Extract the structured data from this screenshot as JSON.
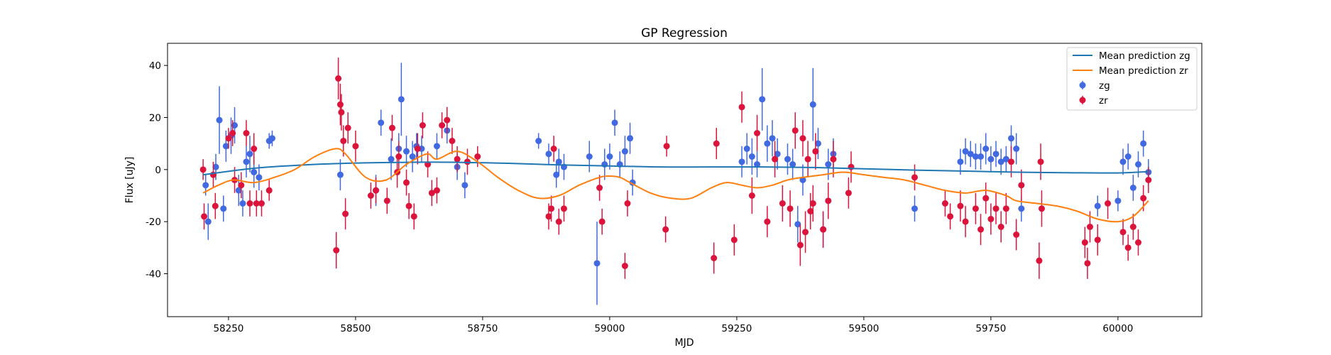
{
  "chart_data": {
    "type": "scatter",
    "title": "GP Regression",
    "xlabel": "MJD",
    "ylabel": "Flux [uJy]",
    "xlim": [
      58130,
      60165
    ],
    "ylim": [
      -56.5,
      48.5
    ],
    "x_ticks": [
      58250,
      58500,
      58750,
      59000,
      59250,
      59500,
      59750,
      60000
    ],
    "y_ticks": [
      -40,
      -20,
      0,
      20,
      40
    ],
    "grid": false,
    "legend": {
      "placement": "top-right",
      "entries": [
        "Mean prediction zg",
        "Mean prediction zr",
        "zg",
        "zr"
      ]
    },
    "series": [
      {
        "name": "Mean prediction zg",
        "kind": "line",
        "color": "#1f77b4",
        "x": [
          58200,
          58300,
          58400,
          58500,
          58600,
          58700,
          58800,
          58900,
          59000,
          59100,
          59200,
          59300,
          59400,
          59500,
          59600,
          59700,
          59800,
          59900,
          60000,
          60060
        ],
        "y": [
          -2,
          0.5,
          1.8,
          2.5,
          2.8,
          2.8,
          2.4,
          1.8,
          1.4,
          1.0,
          1.0,
          1.0,
          0.8,
          0.3,
          -0.2,
          -0.6,
          -1.0,
          -1.2,
          -1.3,
          -0.8
        ]
      },
      {
        "name": "Mean prediction zr",
        "kind": "line",
        "color": "#ff7f0e",
        "x": [
          58200,
          58230,
          58260,
          58300,
          58340,
          58380,
          58420,
          58460,
          58480,
          58520,
          58560,
          58600,
          58640,
          58660,
          58700,
          58740,
          58780,
          58820,
          58860,
          58900,
          58940,
          58980,
          59000,
          59020,
          59040,
          59080,
          59120,
          59160,
          59200,
          59230,
          59260,
          59290,
          59320,
          59350,
          59380,
          59420,
          59460,
          59500,
          59540,
          59580,
          59620,
          59660,
          59700,
          59740,
          59780,
          59800,
          59840,
          59880,
          59920,
          59960,
          60000,
          60030,
          60060
        ],
        "y": [
          -9,
          -6,
          -4,
          -5,
          -3,
          0,
          5,
          8,
          6,
          -3,
          -4,
          2,
          6,
          4,
          7,
          3,
          -3,
          -8,
          -11,
          -10,
          -6,
          -3,
          -2.5,
          -3,
          -5,
          -9,
          -11,
          -11,
          -7,
          -5,
          -6,
          -7,
          -6,
          -4,
          -3,
          -2,
          -1,
          -2,
          -3,
          -4,
          -6,
          -8,
          -9,
          -8,
          -10,
          -12,
          -13,
          -14,
          -16,
          -19,
          -20,
          -18,
          -12
        ]
      },
      {
        "name": "zg",
        "kind": "errorbar",
        "color": "#4169e1",
        "x": [
          58205,
          58210,
          58225,
          58232,
          58240,
          58245,
          58255,
          58262,
          58270,
          58278,
          58285,
          58292,
          58300,
          58310,
          58330,
          58336,
          58470,
          58540,
          58550,
          58570,
          58585,
          58590,
          58600,
          58612,
          58620,
          58630,
          58660,
          58680,
          58700,
          58715,
          58860,
          58880,
          58895,
          58900,
          58910,
          58960,
          58975,
          58990,
          59000,
          59010,
          59020,
          59030,
          59040,
          59045,
          59260,
          59270,
          59280,
          59290,
          59300,
          59310,
          59320,
          59330,
          59350,
          59360,
          59370,
          59380,
          59400,
          59410,
          59420,
          59430,
          59440,
          59600,
          59690,
          59700,
          59710,
          59720,
          59730,
          59740,
          59750,
          59760,
          59770,
          59780,
          59790,
          59800,
          59810,
          59960,
          60000,
          60010,
          60020,
          60030,
          60040,
          60050,
          60060
        ],
        "y": [
          -6,
          -20,
          1,
          19,
          -15,
          9,
          13,
          17,
          -8,
          -13,
          3,
          6,
          -1,
          -3,
          11,
          12,
          -2,
          -8,
          18,
          4,
          8,
          27,
          7,
          5,
          9,
          8,
          9,
          15,
          1,
          -6,
          11,
          6,
          -2,
          3,
          1,
          5,
          -36,
          2,
          5,
          18,
          2,
          7,
          12,
          -5,
          3,
          8,
          5,
          2,
          27,
          10,
          12,
          6,
          4,
          2,
          -21,
          -4,
          25,
          10,
          -23,
          2,
          6,
          -15,
          3,
          7,
          6,
          5,
          5,
          8,
          4,
          6,
          3,
          4,
          12,
          8,
          -15,
          -14,
          -12,
          3,
          5,
          -7,
          2,
          10,
          -1
        ],
        "yerr": [
          4,
          7,
          5,
          13,
          5,
          6,
          7,
          7,
          6,
          5,
          6,
          7,
          6,
          5,
          3,
          3,
          6,
          6,
          5,
          8,
          6,
          14,
          6,
          6,
          5,
          5,
          5,
          5,
          5,
          5,
          3,
          4,
          5,
          5,
          5,
          6,
          16,
          6,
          5,
          5,
          5,
          6,
          6,
          5,
          6,
          6,
          7,
          5,
          12,
          7,
          7,
          6,
          6,
          6,
          7,
          6,
          14,
          6,
          7,
          6,
          6,
          5,
          5,
          5,
          5,
          5,
          5,
          6,
          5,
          5,
          5,
          5,
          5,
          6,
          5,
          4,
          4,
          5,
          5,
          5,
          5,
          5,
          5
        ]
      },
      {
        "name": "zr",
        "kind": "errorbar",
        "color": "#dc143c",
        "x": [
          58200,
          58202,
          58220,
          58224,
          58250,
          58258,
          58262,
          58275,
          58285,
          58292,
          58300,
          58305,
          58315,
          58330,
          58462,
          58466,
          58470,
          58472,
          58476,
          58480,
          58485,
          58500,
          58530,
          58540,
          58562,
          58572,
          58582,
          58585,
          58600,
          58605,
          58615,
          58622,
          58632,
          58642,
          58650,
          58660,
          58670,
          58680,
          58690,
          58700,
          58720,
          58740,
          58880,
          58885,
          58890,
          58900,
          58910,
          58980,
          58985,
          59030,
          59035,
          59110,
          59112,
          59205,
          59210,
          59245,
          59260,
          59280,
          59290,
          59310,
          59325,
          59340,
          59355,
          59365,
          59375,
          59380,
          59385,
          59390,
          59395,
          59400,
          59405,
          59420,
          59430,
          59440,
          59470,
          59475,
          59600,
          59660,
          59670,
          59690,
          59700,
          59720,
          59730,
          59740,
          59750,
          59760,
          59770,
          59780,
          59790,
          59800,
          59810,
          59845,
          59848,
          59850,
          59935,
          59940,
          59945,
          59960,
          59980,
          60010,
          60020,
          60030,
          60040,
          60050,
          60060
        ],
        "y": [
          0,
          -18,
          -2,
          -14,
          12,
          14,
          -4,
          -6,
          14,
          -13,
          8,
          -13,
          -13,
          -8,
          -31,
          35,
          25,
          22,
          11,
          -17,
          16,
          9,
          -10,
          -8,
          -12,
          16,
          -1,
          5,
          -5,
          -14,
          -18,
          8,
          17,
          2,
          -9,
          -8,
          17,
          19,
          11,
          4,
          3,
          5,
          -18,
          -15,
          8,
          -20,
          -15,
          -7,
          -20,
          -37,
          -13,
          -23,
          9,
          -34,
          10,
          -27,
          24,
          -10,
          14,
          -20,
          4,
          -13,
          -15,
          15,
          -29,
          12,
          -24,
          4,
          -16,
          -13,
          7,
          -23,
          -12,
          4,
          -9,
          1,
          -3,
          -13,
          -18,
          -14,
          -20,
          -15,
          -23,
          -11,
          -19,
          -15,
          -22,
          -15,
          3,
          -25,
          -6,
          -35,
          3,
          -15,
          -28,
          -36,
          -22,
          -27,
          -13,
          -24,
          -30,
          -22,
          -28,
          -11,
          -4
        ],
        "yerr": [
          4,
          5,
          5,
          5,
          4,
          5,
          5,
          5,
          5,
          5,
          6,
          5,
          5,
          4,
          7,
          8,
          8,
          7,
          6,
          6,
          6,
          6,
          5,
          5,
          5,
          5,
          6,
          6,
          5,
          5,
          5,
          6,
          5,
          5,
          5,
          5,
          5,
          5,
          5,
          5,
          5,
          4,
          5,
          5,
          5,
          5,
          5,
          5,
          5,
          5,
          5,
          5,
          4,
          6,
          6,
          6,
          6,
          7,
          7,
          6,
          7,
          7,
          7,
          7,
          8,
          7,
          8,
          7,
          7,
          7,
          7,
          7,
          7,
          7,
          6,
          6,
          5,
          5,
          5,
          6,
          6,
          6,
          6,
          6,
          6,
          6,
          6,
          6,
          6,
          6,
          6,
          7,
          7,
          7,
          6,
          6,
          6,
          6,
          6,
          5,
          5,
          5,
          5,
          5,
          5
        ]
      }
    ]
  }
}
